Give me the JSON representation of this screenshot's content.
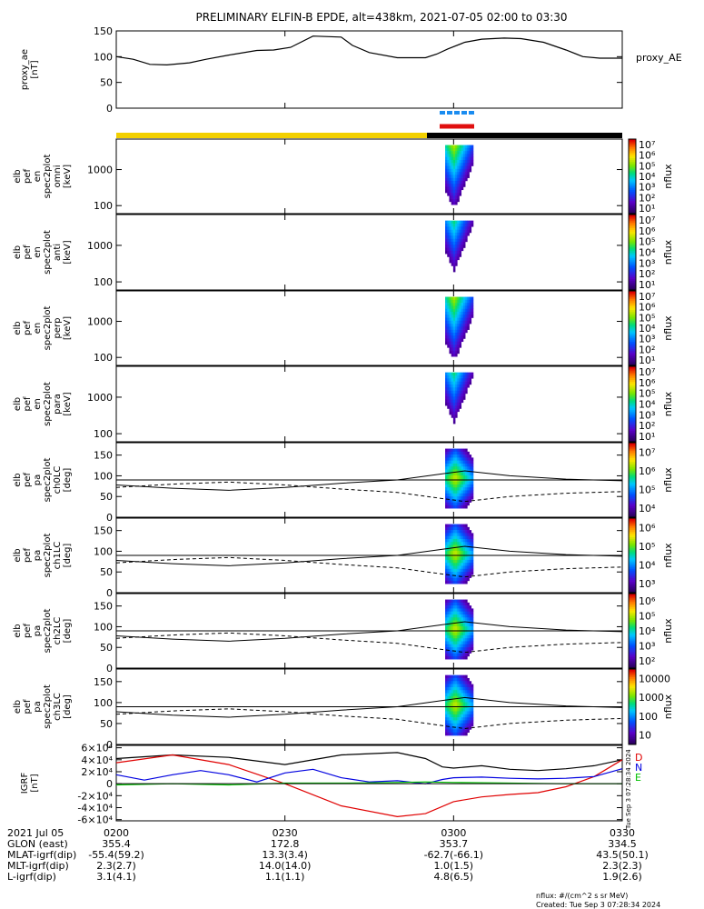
{
  "title": "PRELIMINARY ELFIN-B EPDE, alt=438km, 2021-07-05 02:00 to 03:30",
  "chart_data": {
    "type": "line",
    "time_range": [
      "2021-07-05 02:00",
      "2021-07-05 03:30"
    ],
    "time_ticks_min": [
      0,
      30,
      60,
      90
    ],
    "panels": [
      {
        "id": "proxy_ae",
        "ylabel": [
          "proxy_ae",
          "[nT]"
        ],
        "legend": "proxy_AE",
        "ylim": [
          0,
          150
        ],
        "yticks": [
          "0",
          "50",
          "100",
          "150"
        ],
        "series": [
          {
            "name": "proxy_AE",
            "t": [
              0,
              3,
              6,
              9,
              13,
              16,
              20,
              25,
              28,
              31,
              35,
              40,
              42,
              45,
              50,
              55,
              57,
              59,
              62,
              65,
              69,
              72,
              76,
              80,
              83,
              86,
              88,
              90
            ],
            "values": [
              100,
              95,
              85,
              84,
              88,
              95,
              103,
              112,
              113,
              118,
              140,
              138,
              122,
              108,
              98,
              98,
              105,
              115,
              128,
              134,
              136,
              135,
              128,
              113,
              100,
              97,
              97,
              97
            ]
          }
        ]
      },
      {
        "id": "spec_omni",
        "ylabel": [
          "elb",
          "pef",
          "en",
          "spec2plot",
          "omni",
          "[keV]"
        ],
        "ylog": true,
        "ylim": [
          60,
          7000
        ],
        "yticks": [
          "100",
          "1000"
        ],
        "cbar_label": "nflux",
        "cbar_ticks": [
          "10¹",
          "10²",
          "10³",
          "10⁴",
          "10⁵",
          "10⁶",
          "10⁷"
        ]
      },
      {
        "id": "spec_anti",
        "ylabel": [
          "elb",
          "pef",
          "en",
          "spec2plot",
          "anti",
          "[keV]"
        ],
        "ylog": true,
        "ylim": [
          60,
          7000
        ],
        "yticks": [
          "100",
          "1000"
        ],
        "cbar_label": "nflux",
        "cbar_ticks": [
          "10¹",
          "10²",
          "10³",
          "10⁴",
          "10⁵",
          "10⁶",
          "10⁷"
        ]
      },
      {
        "id": "spec_perp",
        "ylabel": [
          "elb",
          "pef",
          "en",
          "spec2plot",
          "perp",
          "[keV]"
        ],
        "ylog": true,
        "ylim": [
          60,
          7000
        ],
        "yticks": [
          "100",
          "1000"
        ],
        "cbar_label": "nflux",
        "cbar_ticks": [
          "10¹",
          "10²",
          "10³",
          "10⁴",
          "10⁵",
          "10⁶",
          "10⁷"
        ]
      },
      {
        "id": "spec_para",
        "ylabel": [
          "elb",
          "pef",
          "en",
          "spec2plot",
          "para",
          "[keV]"
        ],
        "ylog": true,
        "ylim": [
          60,
          7000
        ],
        "yticks": [
          "100",
          "1000"
        ],
        "cbar_label": "nflux",
        "cbar_ticks": [
          "10¹",
          "10²",
          "10³",
          "10⁴",
          "10⁵",
          "10⁶",
          "10⁷"
        ]
      },
      {
        "id": "pa_ch0",
        "ylabel": [
          "elb",
          "pef",
          "pa",
          "spec2plot",
          "ch0LC",
          "[deg]"
        ],
        "ylim": [
          0,
          180
        ],
        "yticks": [
          "0",
          "50",
          "100",
          "150"
        ],
        "cbar_label": "nflux",
        "cbar_ticks": [
          "10⁴",
          "10⁵",
          "10⁶",
          "10⁷"
        ]
      },
      {
        "id": "pa_ch1",
        "ylabel": [
          "elb",
          "pef",
          "pa",
          "spec2plot",
          "ch1LC",
          "[deg]"
        ],
        "ylim": [
          0,
          180
        ],
        "yticks": [
          "0",
          "50",
          "100",
          "150"
        ],
        "cbar_label": "nflux",
        "cbar_ticks": [
          "10³",
          "10⁴",
          "10⁵",
          "10⁶"
        ]
      },
      {
        "id": "pa_ch2",
        "ylabel": [
          "elb",
          "pef",
          "pa",
          "spec2plot",
          "ch2LC",
          "[deg]"
        ],
        "ylim": [
          0,
          180
        ],
        "yticks": [
          "0",
          "50",
          "100",
          "150"
        ],
        "cbar_label": "nflux",
        "cbar_ticks": [
          "10²",
          "10³",
          "10⁴",
          "10⁵",
          "10⁶"
        ]
      },
      {
        "id": "pa_ch3",
        "ylabel": [
          "elb",
          "pef",
          "pa",
          "spec2plot",
          "ch3LC",
          "[deg]"
        ],
        "ylim": [
          0,
          180
        ],
        "yticks": [
          "0",
          "50",
          "100",
          "150"
        ],
        "cbar_label": "nflux",
        "cbar_ticks": [
          "10",
          "100",
          "1000",
          "10000"
        ]
      },
      {
        "id": "igrf",
        "ylabel": [
          "IGRF",
          "[nT]"
        ],
        "ylim": [
          -62000,
          64000
        ],
        "yticks": [
          "-6×10⁴",
          "-4×10⁴",
          "-2×10⁴",
          "0",
          "2×10⁴",
          "4×10⁴",
          "6×10⁴"
        ],
        "series": [
          {
            "name": "total",
            "color": "#000000",
            "t": [
              0,
              10,
              20,
              30,
              40,
              50,
              55,
              58,
              60,
              65,
              70,
              75,
              80,
              85,
              90
            ],
            "values": [
              42000,
              48000,
              44000,
              32000,
              48000,
              52000,
              42000,
              28000,
              26000,
              30000,
              24000,
              22000,
              25000,
              30000,
              40000
            ]
          },
          {
            "name": "D",
            "color": "#e00000",
            "t": [
              0,
              10,
              20,
              30,
              40,
              50,
              55,
              60,
              65,
              70,
              75,
              80,
              85,
              90
            ],
            "values": [
              35000,
              48000,
              32000,
              0,
              -37000,
              -55000,
              -50000,
              -30000,
              -22000,
              -18000,
              -15000,
              -5000,
              12000,
              40000
            ]
          },
          {
            "name": "N",
            "color": "#0000e0",
            "t": [
              0,
              5,
              10,
              15,
              20,
              25,
              30,
              35,
              40,
              45,
              50,
              55,
              58,
              60,
              65,
              70,
              75,
              80,
              85,
              90
            ],
            "values": [
              15000,
              6000,
              15000,
              22000,
              15000,
              3000,
              18000,
              24000,
              10000,
              3000,
              5000,
              0,
              7000,
              10000,
              11000,
              9000,
              8000,
              9000,
              12000,
              25000
            ]
          },
          {
            "name": "E",
            "color": "#00c000",
            "t": [
              0,
              10,
              20,
              30,
              40,
              50,
              55,
              60,
              70,
              80,
              90
            ],
            "values": [
              -2000,
              0,
              -2000,
              1000,
              1000,
              2000,
              3000,
              2000,
              1000,
              0,
              0
            ]
          }
        ],
        "legend": [
          "D",
          "N",
          "E"
        ]
      }
    ],
    "orbit_bars": {
      "sunlight_label": "yellow then black",
      "science_zone_bars": [
        "blue",
        "red"
      ]
    }
  },
  "footer": {
    "rows": [
      {
        "label": "2021 Jul 05",
        "values": [
          "0200",
          "0230",
          "0300",
          "0330"
        ]
      },
      {
        "label": "GLON (east)",
        "values": [
          "355.4",
          "172.8",
          "353.7",
          "334.5"
        ]
      },
      {
        "label": "MLAT-igrf(dip)",
        "values": [
          "-55.4(59.2)",
          "13.3(3.4)",
          "-62.7(-66.1)",
          "43.5(50.1)"
        ]
      },
      {
        "label": "MLT-igrf(dip)",
        "values": [
          "2.3(2.7)",
          "14.0(14.0)",
          "1.0(1.5)",
          "2.3(2.3)"
        ]
      },
      {
        "label": "L-igrf(dip)",
        "values": [
          "3.1(4.1)",
          "1.1(1.1)",
          "4.8(6.5)",
          "1.9(2.6)"
        ]
      }
    ],
    "units_note": "nflux: #/(cm^2 s sr MeV)",
    "created": "Created: Tue Sep  3 07:28:34 2024",
    "side_stamp": "Tue Sep  3 07:28:34 2024"
  },
  "colors": {
    "ae_line": "#000000",
    "day_bar": "#f2d000",
    "night_bar": "#000000",
    "science_blue": "#1a8cf0",
    "science_red": "#e01010"
  }
}
